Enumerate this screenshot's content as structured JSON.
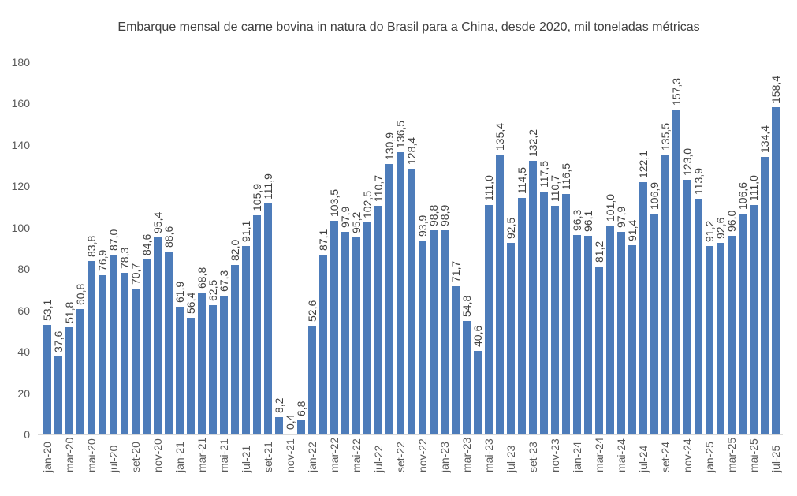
{
  "chart_data": {
    "type": "bar",
    "title": "Embarque mensal de carne bovina in natura do Brasil para a China, desde 2020, mil toneladas métricas",
    "xlabel": "",
    "ylabel": "",
    "ylim": [
      0,
      180
    ],
    "y_ticks": [
      0,
      20,
      40,
      60,
      80,
      100,
      120,
      140,
      160,
      180
    ],
    "grid": false,
    "legend": false,
    "bar_color": "#4d7cba",
    "categories": [
      "jan-20",
      "fev-20",
      "mar-20",
      "abr-20",
      "mai-20",
      "jun-20",
      "jul-20",
      "ago-20",
      "set-20",
      "out-20",
      "nov-20",
      "dez-20",
      "jan-21",
      "fev-21",
      "mar-21",
      "abr-21",
      "mai-21",
      "jun-21",
      "jul-21",
      "ago-21",
      "set-21",
      "out-21",
      "nov-21",
      "dez-21",
      "jan-22",
      "fev-22",
      "mar-22",
      "abr-22",
      "mai-22",
      "jun-22",
      "jul-22",
      "ago-22",
      "set-22",
      "out-22",
      "nov-22",
      "dez-22",
      "jan-23",
      "fev-23",
      "mar-23",
      "abr-23",
      "mai-23",
      "jun-23",
      "jul-23",
      "ago-23",
      "set-23",
      "out-23",
      "nov-23",
      "dez-23",
      "jan-24",
      "fev-24",
      "mar-24",
      "abr-24",
      "mai-24",
      "jun-24",
      "jul-24",
      "ago-24",
      "set-24",
      "out-24",
      "nov-24",
      "dez-24",
      "jan-25",
      "fev-25",
      "mar-25",
      "abr-25",
      "mai-25",
      "jun-25",
      "jul-25"
    ],
    "values": [
      53.1,
      37.6,
      51.8,
      60.8,
      83.8,
      76.9,
      87.0,
      78.3,
      70.7,
      84.6,
      95.4,
      88.6,
      61.9,
      56.4,
      68.8,
      62.5,
      67.3,
      82.0,
      91.1,
      105.9,
      111.9,
      8.2,
      0.4,
      6.8,
      52.6,
      87.1,
      103.5,
      97.9,
      95.2,
      102.5,
      110.7,
      130.9,
      136.5,
      128.4,
      93.9,
      98.8,
      98.9,
      71.7,
      54.8,
      40.6,
      111.0,
      135.4,
      92.5,
      114.5,
      132.2,
      117.5,
      110.7,
      116.5,
      96.3,
      96.1,
      81.2,
      101.0,
      97.9,
      91.4,
      122.1,
      106.9,
      135.5,
      157.3,
      123.0,
      113.9,
      91.2,
      92.6,
      96.0,
      106.6,
      111.0,
      134.4,
      158.4
    ],
    "data_labels": [
      "53,1",
      "37,6",
      "51,8",
      "60,8",
      "83,8",
      "76,9",
      "87,0",
      "78,3",
      "70,7",
      "84,6",
      "95,4",
      "88,6",
      "61,9",
      "56,4",
      "68,8",
      "62,5",
      "67,3",
      "82,0",
      "91,1",
      "105,9",
      "111,9",
      "8,2",
      "0,4",
      "6,8",
      "52,6",
      "87,1",
      "103,5",
      "97,9",
      "95,2",
      "102,5",
      "110,7",
      "130,9",
      "136,5",
      "128,4",
      "93,9",
      "98,8",
      "98,9",
      "71,7",
      "54,8",
      "40,6",
      "111,0",
      "135,4",
      "92,5",
      "114,5",
      "132,2",
      "117,5",
      "110,7",
      "116,5",
      "96,3",
      "96,1",
      "81,2",
      "101,0",
      "97,9",
      "91,4",
      "122,1",
      "106,9",
      "135,5",
      "157,3",
      "123,0",
      "113,9",
      "91,2",
      "92,6",
      "96,0",
      "106,6",
      "111,0",
      "134,4",
      "158,4"
    ],
    "x_tick_labels": [
      "jan-20",
      "mar-20",
      "mai-20",
      "jul-20",
      "set-20",
      "nov-20",
      "jan-21",
      "mar-21",
      "mai-21",
      "jul-21",
      "set-21",
      "nov-21",
      "jan-22",
      "mar-22",
      "mai-22",
      "jul-22",
      "set-22",
      "nov-22",
      "jan-23",
      "mar-23",
      "mai-23",
      "jul-23",
      "set-23",
      "nov-23",
      "jan-24",
      "mar-24",
      "mai-24",
      "jul-24",
      "set-24",
      "nov-24",
      "jan-25",
      "mar-25",
      "mai-25",
      "jul-25"
    ]
  }
}
